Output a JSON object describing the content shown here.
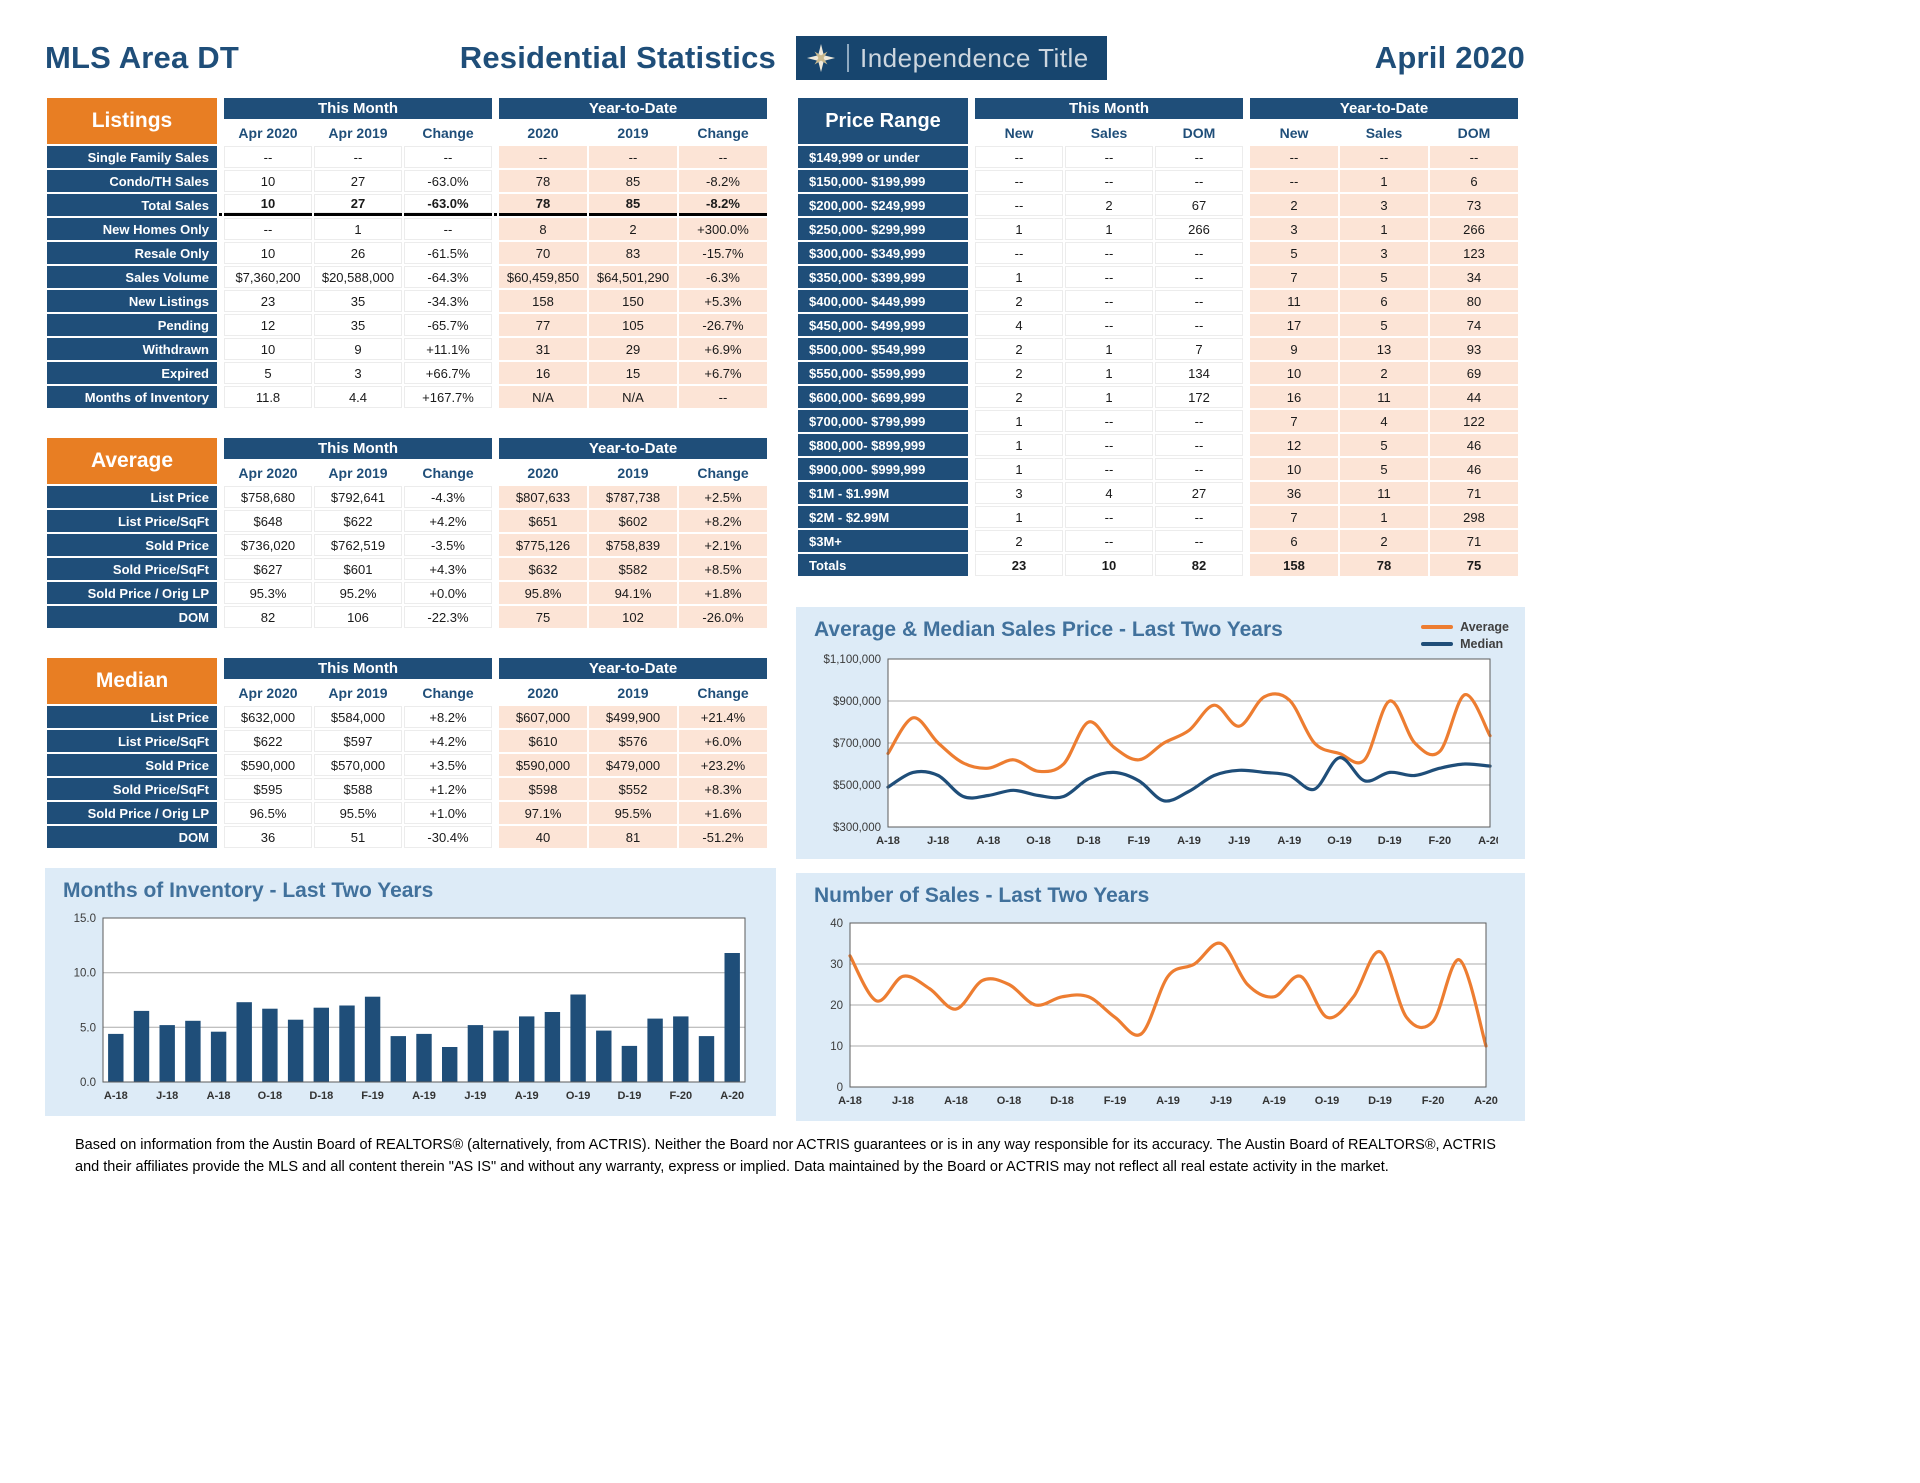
{
  "header": {
    "area_title": "MLS Area DT",
    "report_title": "Residential Statistics",
    "month_title": "April 2020",
    "logo": {
      "brand": "Independence Title",
      "icon": "compass-star-icon"
    }
  },
  "colors": {
    "navy": "#1F4E79",
    "orange": "#E87E23",
    "peach": "#FCE4D6",
    "panel_blue": "#DDEBF7",
    "chart_title_blue": "#41719C",
    "line_orange": "#ED7D31",
    "line_navy": "#1F4E79"
  },
  "tables": {
    "listings": {
      "banner": "Listings",
      "groups": [
        "This Month",
        "Year-to-Date"
      ],
      "columns": [
        "Apr 2020",
        "Apr 2019",
        "Change",
        "2020",
        "2019",
        "Change"
      ],
      "rows": [
        {
          "label": "Single Family Sales",
          "values": [
            "--",
            "--",
            "--",
            "--",
            "--",
            "--"
          ]
        },
        {
          "label": "Condo/TH Sales",
          "values": [
            "10",
            "27",
            "-63.0%",
            "78",
            "85",
            "-8.2%"
          ]
        },
        {
          "label": "Total Sales",
          "values": [
            "10",
            "27",
            "-63.0%",
            "78",
            "85",
            "-8.2%"
          ],
          "bold": true,
          "underline": true
        },
        {
          "label": "New Homes Only",
          "values": [
            "--",
            "1",
            "--",
            "8",
            "2",
            "+300.0%"
          ]
        },
        {
          "label": "Resale Only",
          "values": [
            "10",
            "26",
            "-61.5%",
            "70",
            "83",
            "-15.7%"
          ]
        },
        {
          "label": "Sales Volume",
          "values": [
            "$7,360,200",
            "$20,588,000",
            "-64.3%",
            "$60,459,850",
            "$64,501,290",
            "-6.3%"
          ]
        },
        {
          "label": "New Listings",
          "values": [
            "23",
            "35",
            "-34.3%",
            "158",
            "150",
            "+5.3%"
          ]
        },
        {
          "label": "Pending",
          "values": [
            "12",
            "35",
            "-65.7%",
            "77",
            "105",
            "-26.7%"
          ]
        },
        {
          "label": "Withdrawn",
          "values": [
            "10",
            "9",
            "+11.1%",
            "31",
            "29",
            "+6.9%"
          ]
        },
        {
          "label": "Expired",
          "values": [
            "5",
            "3",
            "+66.7%",
            "16",
            "15",
            "+6.7%"
          ]
        },
        {
          "label": "Months of Inventory",
          "values": [
            "11.8",
            "4.4",
            "+167.7%",
            "N/A",
            "N/A",
            "--"
          ]
        }
      ]
    },
    "average": {
      "banner": "Average",
      "groups": [
        "This Month",
        "Year-to-Date"
      ],
      "columns": [
        "Apr 2020",
        "Apr 2019",
        "Change",
        "2020",
        "2019",
        "Change"
      ],
      "rows": [
        {
          "label": "List Price",
          "values": [
            "$758,680",
            "$792,641",
            "-4.3%",
            "$807,633",
            "$787,738",
            "+2.5%"
          ]
        },
        {
          "label": "List Price/SqFt",
          "values": [
            "$648",
            "$622",
            "+4.2%",
            "$651",
            "$602",
            "+8.2%"
          ]
        },
        {
          "label": "Sold Price",
          "values": [
            "$736,020",
            "$762,519",
            "-3.5%",
            "$775,126",
            "$758,839",
            "+2.1%"
          ]
        },
        {
          "label": "Sold Price/SqFt",
          "values": [
            "$627",
            "$601",
            "+4.3%",
            "$632",
            "$582",
            "+8.5%"
          ]
        },
        {
          "label": "Sold Price / Orig LP",
          "values": [
            "95.3%",
            "95.2%",
            "+0.0%",
            "95.8%",
            "94.1%",
            "+1.8%"
          ]
        },
        {
          "label": "DOM",
          "values": [
            "82",
            "106",
            "-22.3%",
            "75",
            "102",
            "-26.0%"
          ]
        }
      ]
    },
    "median": {
      "banner": "Median",
      "groups": [
        "This Month",
        "Year-to-Date"
      ],
      "columns": [
        "Apr 2020",
        "Apr 2019",
        "Change",
        "2020",
        "2019",
        "Change"
      ],
      "rows": [
        {
          "label": "List Price",
          "values": [
            "$632,000",
            "$584,000",
            "+8.2%",
            "$607,000",
            "$499,900",
            "+21.4%"
          ]
        },
        {
          "label": "List Price/SqFt",
          "values": [
            "$622",
            "$597",
            "+4.2%",
            "$610",
            "$576",
            "+6.0%"
          ]
        },
        {
          "label": "Sold Price",
          "values": [
            "$590,000",
            "$570,000",
            "+3.5%",
            "$590,000",
            "$479,000",
            "+23.2%"
          ]
        },
        {
          "label": "Sold Price/SqFt",
          "values": [
            "$595",
            "$588",
            "+1.2%",
            "$598",
            "$552",
            "+8.3%"
          ]
        },
        {
          "label": "Sold Price / Orig LP",
          "values": [
            "96.5%",
            "95.5%",
            "+1.0%",
            "97.1%",
            "95.5%",
            "+1.6%"
          ]
        },
        {
          "label": "DOM",
          "values": [
            "36",
            "51",
            "-30.4%",
            "40",
            "81",
            "-51.2%"
          ]
        }
      ]
    },
    "price_range": {
      "banner": "Price Range",
      "groups": [
        "This Month",
        "Year-to-Date"
      ],
      "columns": [
        "New",
        "Sales",
        "DOM",
        "New",
        "Sales",
        "DOM"
      ],
      "rows": [
        {
          "label": "$149,999 or under",
          "values": [
            "--",
            "--",
            "--",
            "--",
            "--",
            "--"
          ]
        },
        {
          "label": "$150,000- $199,999",
          "values": [
            "--",
            "--",
            "--",
            "--",
            "1",
            "6"
          ]
        },
        {
          "label": "$200,000- $249,999",
          "values": [
            "--",
            "2",
            "67",
            "2",
            "3",
            "73"
          ]
        },
        {
          "label": "$250,000- $299,999",
          "values": [
            "1",
            "1",
            "266",
            "3",
            "1",
            "266"
          ]
        },
        {
          "label": "$300,000- $349,999",
          "values": [
            "--",
            "--",
            "--",
            "5",
            "3",
            "123"
          ]
        },
        {
          "label": "$350,000- $399,999",
          "values": [
            "1",
            "--",
            "--",
            "7",
            "5",
            "34"
          ]
        },
        {
          "label": "$400,000- $449,999",
          "values": [
            "2",
            "--",
            "--",
            "11",
            "6",
            "80"
          ]
        },
        {
          "label": "$450,000- $499,999",
          "values": [
            "4",
            "--",
            "--",
            "17",
            "5",
            "74"
          ]
        },
        {
          "label": "$500,000- $549,999",
          "values": [
            "2",
            "1",
            "7",
            "9",
            "13",
            "93"
          ]
        },
        {
          "label": "$550,000- $599,999",
          "values": [
            "2",
            "1",
            "134",
            "10",
            "2",
            "69"
          ]
        },
        {
          "label": "$600,000- $699,999",
          "values": [
            "2",
            "1",
            "172",
            "16",
            "11",
            "44"
          ]
        },
        {
          "label": "$700,000- $799,999",
          "values": [
            "1",
            "--",
            "--",
            "7",
            "4",
            "122"
          ]
        },
        {
          "label": "$800,000- $899,999",
          "values": [
            "1",
            "--",
            "--",
            "12",
            "5",
            "46"
          ]
        },
        {
          "label": "$900,000- $999,999",
          "values": [
            "1",
            "--",
            "--",
            "10",
            "5",
            "46"
          ]
        },
        {
          "label": "$1M - $1.99M",
          "values": [
            "3",
            "4",
            "27",
            "36",
            "11",
            "71"
          ]
        },
        {
          "label": "$2M - $2.99M",
          "values": [
            "1",
            "--",
            "--",
            "7",
            "1",
            "298"
          ]
        },
        {
          "label": "$3M+",
          "values": [
            "2",
            "--",
            "--",
            "6",
            "2",
            "71"
          ]
        },
        {
          "label": "Totals",
          "values": [
            "23",
            "10",
            "82",
            "158",
            "78",
            "75"
          ],
          "bold": true
        }
      ]
    }
  },
  "chart_data": [
    {
      "type": "line",
      "title": "Average & Median Sales Price - Last Two Years",
      "x_tick_labels": [
        "A-18",
        "J-18",
        "A-18",
        "O-18",
        "D-18",
        "F-19",
        "A-19",
        "J-19",
        "A-19",
        "O-19",
        "D-19",
        "F-20",
        "A-20"
      ],
      "ylim": [
        300000,
        1100000
      ],
      "y_ticks": [
        300000,
        500000,
        700000,
        900000,
        1100000
      ],
      "y_tick_format": "usd",
      "legend_position": "top-right",
      "grid": true,
      "series": [
        {
          "name": "Average",
          "color": "#ED7D31",
          "values": [
            650000,
            820000,
            700000,
            605000,
            580000,
            620000,
            565000,
            600000,
            800000,
            680000,
            620000,
            700000,
            760000,
            880000,
            780000,
            920000,
            905000,
            700000,
            650000,
            620000,
            900000,
            700000,
            660000,
            930000,
            735000
          ]
        },
        {
          "name": "Median",
          "color": "#1F4E79",
          "values": [
            490000,
            560000,
            545000,
            445000,
            450000,
            475000,
            450000,
            445000,
            530000,
            560000,
            520000,
            425000,
            470000,
            545000,
            570000,
            560000,
            545000,
            480000,
            630000,
            520000,
            560000,
            545000,
            580000,
            600000,
            590000
          ]
        }
      ]
    },
    {
      "type": "bar",
      "title": "Months of Inventory - Last Two Years",
      "x_tick_labels": [
        "A-18",
        "J-18",
        "A-18",
        "O-18",
        "D-18",
        "F-19",
        "A-19",
        "J-19",
        "A-19",
        "O-19",
        "D-19",
        "F-20",
        "A-20"
      ],
      "ylim": [
        0,
        15
      ],
      "y_ticks": [
        0,
        5,
        10,
        15
      ],
      "y_tick_format": "one_decimal",
      "grid": true,
      "series": [
        {
          "name": "Months of Inventory",
          "color": "#1F4E79",
          "values": [
            4.4,
            6.5,
            5.2,
            5.6,
            4.6,
            7.3,
            6.7,
            5.7,
            6.8,
            7.0,
            7.8,
            4.2,
            4.4,
            3.2,
            5.2,
            4.7,
            6.0,
            6.4,
            8.0,
            4.7,
            3.3,
            5.8,
            6.0,
            4.2,
            11.8
          ]
        }
      ]
    },
    {
      "type": "line",
      "title": "Number of Sales - Last Two Years",
      "x_tick_labels": [
        "A-18",
        "J-18",
        "A-18",
        "O-18",
        "D-18",
        "F-19",
        "A-19",
        "J-19",
        "A-19",
        "O-19",
        "D-19",
        "F-20",
        "A-20"
      ],
      "ylim": [
        0,
        40
      ],
      "y_ticks": [
        0,
        10,
        20,
        30,
        40
      ],
      "y_tick_format": "int",
      "grid": true,
      "series": [
        {
          "name": "Sales",
          "color": "#ED7D31",
          "values": [
            32,
            21,
            27,
            24,
            19,
            26,
            25,
            20,
            22,
            22,
            17,
            13,
            27,
            30,
            35,
            25,
            22,
            27,
            17,
            22,
            33,
            17,
            16,
            31,
            10
          ]
        }
      ]
    }
  ],
  "footer": {
    "disclaimer": "Based on information from the Austin Board of REALTORS® (alternatively, from ACTRIS). Neither the Board nor ACTRIS guarantees or is in any way responsible for its accuracy. The Austin Board of REALTORS®, ACTRIS and their affiliates provide the MLS and all content therein \"AS IS\" and without any warranty, express or implied. Data maintained by the Board or ACTRIS may not reflect all real estate activity in the market."
  }
}
